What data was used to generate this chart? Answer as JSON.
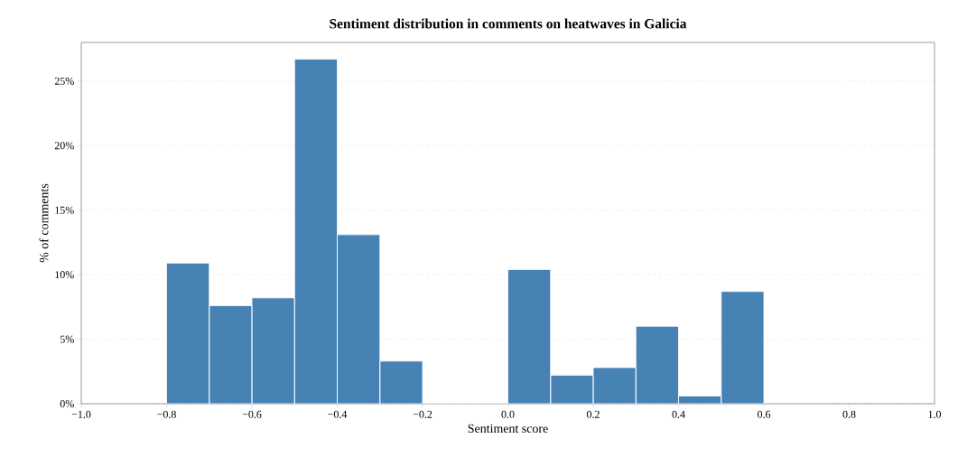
{
  "chart_data": {
    "type": "histogram",
    "title": "Sentiment distribution in comments on heatwaves in Galicia",
    "xlabel": "Sentiment score",
    "ylabel": "% of comments",
    "bins": [
      -0.8,
      -0.7,
      -0.6,
      -0.5,
      -0.4,
      -0.3,
      -0.2,
      -0.1,
      0.0,
      0.1,
      0.2,
      0.3,
      0.4,
      0.5,
      0.6
    ],
    "values": [
      10.9,
      7.6,
      8.2,
      26.7,
      13.1,
      3.3,
      0,
      0,
      10.4,
      2.2,
      2.8,
      6.0,
      0.6,
      8.7
    ],
    "color": "#4682b4",
    "xlim": [
      -1.0,
      1.0
    ],
    "xticks": [
      {
        "value": -1.0,
        "label": "−1.0"
      },
      {
        "value": -0.8,
        "label": "−0.8"
      },
      {
        "value": -0.6,
        "label": "−0.6"
      },
      {
        "value": -0.4,
        "label": "−0.4"
      },
      {
        "value": -0.2,
        "label": "−0.2"
      },
      {
        "value": 0.0,
        "label": "0.0"
      },
      {
        "value": 0.2,
        "label": "0.2"
      },
      {
        "value": 0.4,
        "label": "0.4"
      },
      {
        "value": 0.6,
        "label": "0.6"
      },
      {
        "value": 0.8,
        "label": "0.8"
      },
      {
        "value": 1.0,
        "label": "1.0"
      }
    ],
    "ylim": [
      0,
      28
    ],
    "yticks": [
      {
        "value": 0,
        "label": "0%"
      },
      {
        "value": 5,
        "label": "5%"
      },
      {
        "value": 10,
        "label": "10%"
      },
      {
        "value": 15,
        "label": "15%"
      },
      {
        "value": 20,
        "label": "20%"
      },
      {
        "value": 25,
        "label": "25%"
      }
    ],
    "grid": "y"
  }
}
